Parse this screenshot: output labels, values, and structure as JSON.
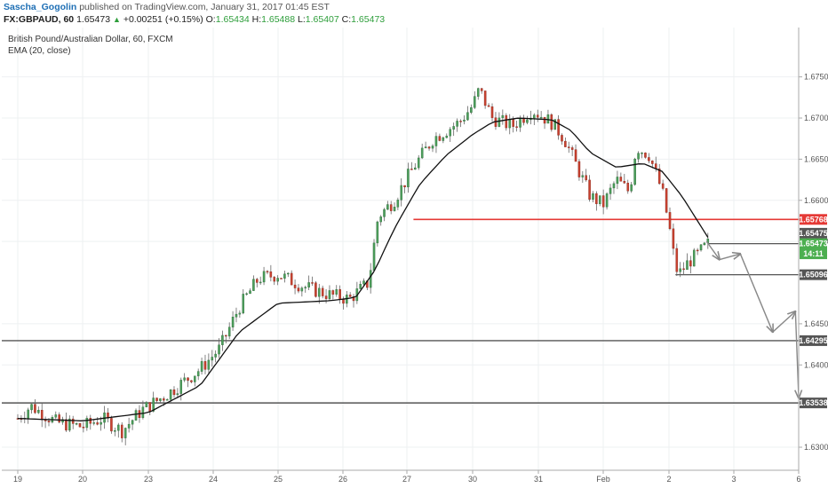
{
  "header": {
    "author": "Sascha_Gogolin",
    "published": "published on TradingView.com, January 31, 2017 01:45 EST",
    "symbol": "FX:GBPAUD, 60",
    "last": "1.65473",
    "change": "+0.00251 (+0.15%)",
    "o_label": "O:",
    "o_value": "1.65434",
    "h_label": "H:",
    "h_value": "1.65488",
    "l_label": "L:",
    "l_value": "1.65407",
    "c_label": "C:",
    "c_value": "1.65473"
  },
  "legend": {
    "title": "British Pound/Australian Dollar, 60, FXCM",
    "indicator": "EMA (20, close)"
  },
  "colors": {
    "up": "#4c9f5b",
    "down": "#c9412f",
    "wick": "#666666",
    "ema": "#111111",
    "resistance": "#e53935",
    "level": "#555555",
    "grid": "#eef0f2",
    "green_tag": "#4caf50",
    "dark_tag": "#555555",
    "red_tag": "#e53935",
    "arrow": "#888888"
  },
  "chart_data": {
    "type": "candlestick",
    "ylim": [
      1.6272,
      1.681
    ],
    "y_ticks": [
      "1.67500",
      "1.67000",
      "1.66500",
      "1.66000",
      "1.65500",
      "1.64500",
      "1.64000",
      "1.63000"
    ],
    "x_ticks": [
      "19",
      "20",
      "23",
      "24",
      "25",
      "26",
      "27",
      "30",
      "31",
      "Feb",
      "2",
      "3",
      "6"
    ],
    "levels": [
      {
        "price": 1.65768,
        "label": "1.65768",
        "style": "resistance"
      },
      {
        "price": 1.65473,
        "label": "1.65473",
        "style": "current"
      },
      {
        "price": 1.65096,
        "label": "1.65096",
        "style": "support"
      },
      {
        "price": 1.64295,
        "label": "1.64295",
        "style": "support"
      },
      {
        "price": 1.63538,
        "label": "1.63538",
        "style": "support"
      }
    ],
    "tags": [
      {
        "price": 1.65768,
        "label": "1.65768",
        "kind": "red"
      },
      {
        "price": 1.656,
        "label": "1.65475",
        "kind": "dark"
      },
      {
        "price": 1.65473,
        "label": "1.65473",
        "kind": "green"
      },
      {
        "price": 1.6535,
        "label": "14:11",
        "kind": "green"
      },
      {
        "price": 1.65096,
        "label": "1.65096",
        "kind": "dark"
      },
      {
        "price": 1.64295,
        "label": "1.64295",
        "kind": "dark"
      },
      {
        "price": 1.63538,
        "label": "1.63538",
        "kind": "dark"
      }
    ],
    "anchors": [
      [
        19.0,
        1.6335
      ],
      [
        19.2,
        1.635
      ],
      [
        19.6,
        1.633
      ],
      [
        20.0,
        1.6325
      ],
      [
        20.3,
        1.6335
      ],
      [
        20.6,
        1.632
      ],
      [
        20.9,
        1.6345
      ],
      [
        21.3,
        1.6365
      ],
      [
        21.8,
        1.6395
      ],
      [
        22.1,
        1.642
      ],
      [
        22.4,
        1.647
      ],
      [
        22.7,
        1.6505
      ],
      [
        23.0,
        1.651
      ],
      [
        23.4,
        1.6495
      ],
      [
        23.8,
        1.6485
      ],
      [
        24.1,
        1.648
      ],
      [
        24.4,
        1.65
      ],
      [
        24.55,
        1.658
      ],
      [
        24.8,
        1.66
      ],
      [
        25.1,
        1.664
      ],
      [
        25.4,
        1.6675
      ],
      [
        25.8,
        1.6695
      ],
      [
        26.0,
        1.6715
      ],
      [
        26.1,
        1.6735
      ],
      [
        26.3,
        1.67
      ],
      [
        26.6,
        1.669
      ],
      [
        26.9,
        1.671
      ],
      [
        27.2,
        1.6695
      ],
      [
        27.4,
        1.6675
      ],
      [
        27.6,
        1.664
      ],
      [
        27.8,
        1.6605
      ],
      [
        28.0,
        1.6595
      ],
      [
        28.2,
        1.6625
      ],
      [
        28.4,
        1.661
      ],
      [
        28.5,
        1.6665
      ],
      [
        28.7,
        1.6655
      ],
      [
        28.9,
        1.661
      ],
      [
        29.0,
        1.657
      ],
      [
        29.1,
        1.652
      ],
      [
        29.15,
        1.651
      ],
      [
        29.3,
        1.6525
      ],
      [
        29.45,
        1.6535
      ],
      [
        29.6,
        1.6547
      ]
    ],
    "ema_anchors": [
      [
        19.0,
        1.6335
      ],
      [
        20.0,
        1.6332
      ],
      [
        21.0,
        1.6342
      ],
      [
        21.8,
        1.6375
      ],
      [
        22.4,
        1.644
      ],
      [
        23.0,
        1.6475
      ],
      [
        23.8,
        1.6478
      ],
      [
        24.2,
        1.6482
      ],
      [
        24.5,
        1.6515
      ],
      [
        24.8,
        1.6565
      ],
      [
        25.2,
        1.662
      ],
      [
        25.6,
        1.6655
      ],
      [
        26.0,
        1.668
      ],
      [
        26.3,
        1.6695
      ],
      [
        26.7,
        1.67
      ],
      [
        27.2,
        1.6698
      ],
      [
        27.5,
        1.6685
      ],
      [
        27.8,
        1.6658
      ],
      [
        28.2,
        1.664
      ],
      [
        28.6,
        1.6645
      ],
      [
        28.9,
        1.6635
      ],
      [
        29.2,
        1.6605
      ],
      [
        29.6,
        1.6555
      ]
    ],
    "projection": [
      [
        29.58,
        1.655
      ],
      [
        29.78,
        1.6528
      ],
      [
        30.1,
        1.6535
      ],
      [
        30.6,
        1.644
      ],
      [
        30.95,
        1.6465
      ],
      [
        31.3,
        1.636
      ]
    ],
    "series": []
  }
}
